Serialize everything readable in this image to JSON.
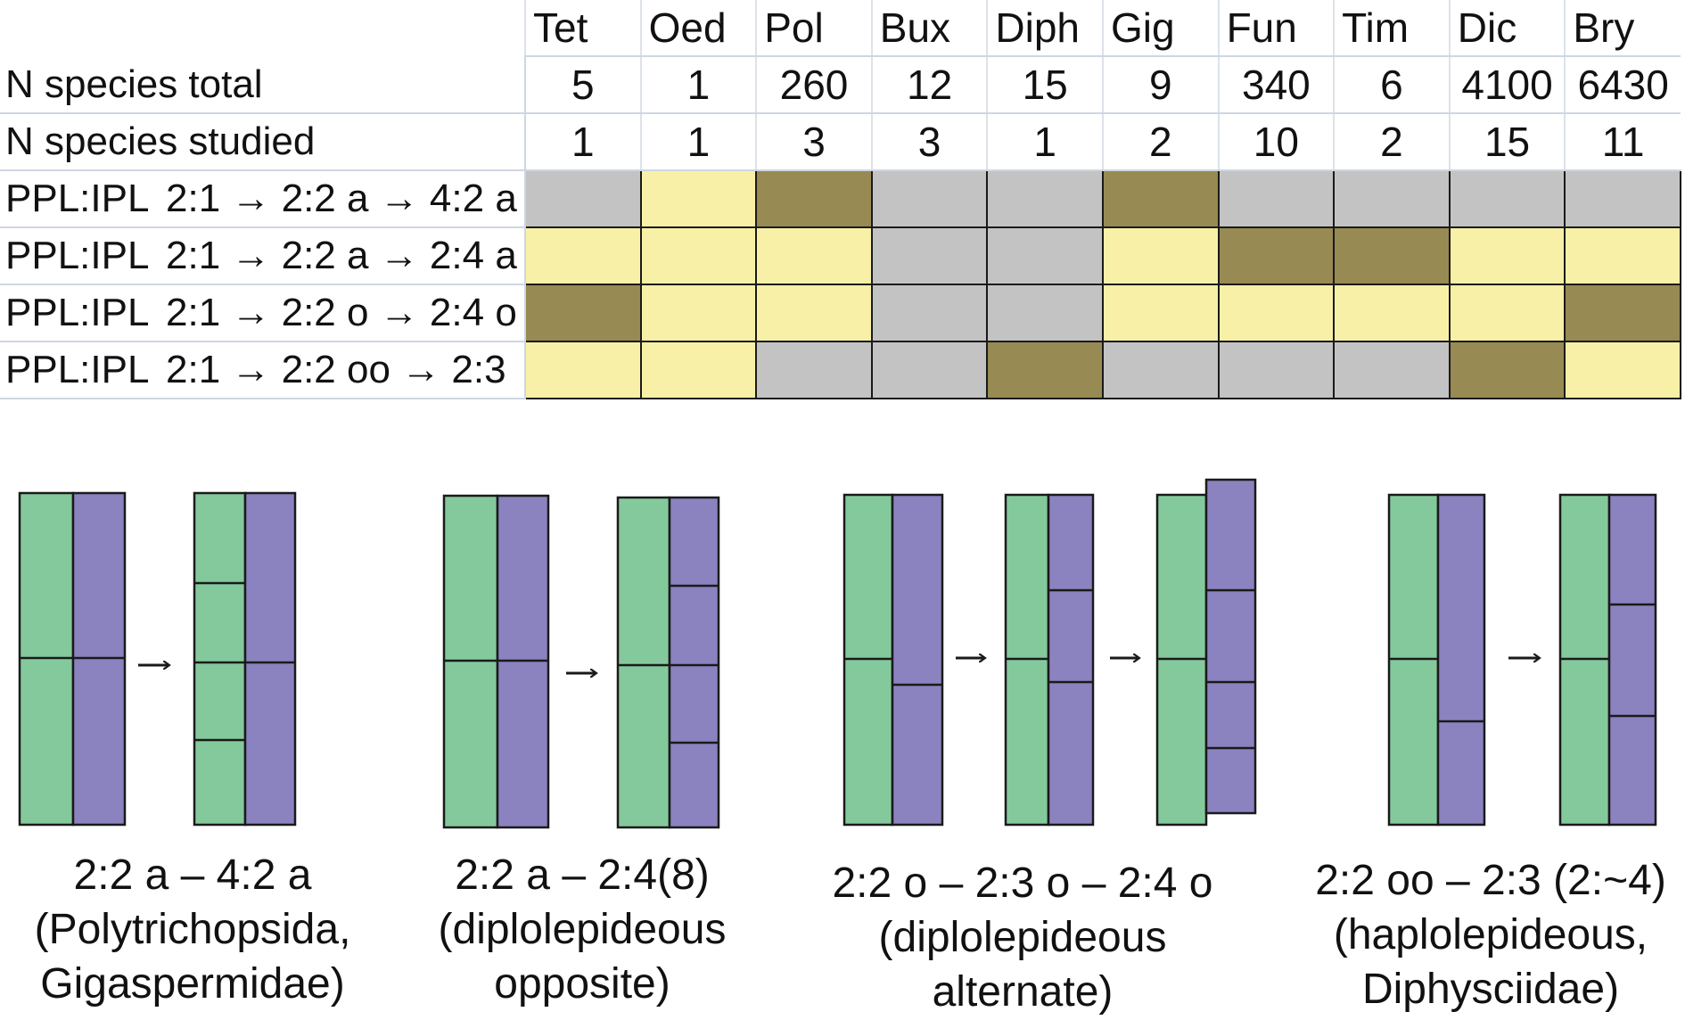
{
  "table": {
    "columns": [
      "Tet",
      "Oed",
      "Pol",
      "Bux",
      "Diph",
      "Gig",
      "Fun",
      "Tim",
      "Dic",
      "Bry"
    ],
    "count_rows": [
      {
        "label": "N species total",
        "values": [
          "5",
          "1",
          "260",
          "12",
          "15",
          "9",
          "340",
          "6",
          "4100",
          "6430"
        ]
      },
      {
        "label": "N species studied",
        "values": [
          "1",
          "1",
          "3",
          "3",
          "1",
          "2",
          "10",
          "2",
          "15",
          "11"
        ]
      }
    ],
    "pattern_rows": [
      {
        "prefix": "PPL:IPL",
        "sequence": "2:1 → 2:2 a → 4:2 a",
        "cells": [
          "absent",
          "possible",
          "present",
          "absent",
          "absent",
          "present",
          "absent",
          "absent",
          "absent",
          "absent"
        ]
      },
      {
        "prefix": "PPL:IPL",
        "sequence": "2:1 → 2:2 a → 2:4 a",
        "cells": [
          "possible",
          "possible",
          "possible",
          "absent",
          "absent",
          "possible",
          "present",
          "present",
          "possible",
          "possible"
        ]
      },
      {
        "prefix": "PPL:IPL",
        "sequence": "2:1 → 2:2 o → 2:4 o",
        "cells": [
          "present",
          "possible",
          "possible",
          "absent",
          "absent",
          "possible",
          "possible",
          "possible",
          "possible",
          "present"
        ]
      },
      {
        "prefix": "PPL:IPL",
        "sequence": "2:1 → 2:2 oo → 2:3",
        "cells": [
          "possible",
          "possible",
          "absent",
          "absent",
          "present",
          "absent",
          "absent",
          "absent",
          "present",
          "possible"
        ]
      }
    ],
    "cell_colors": {
      "absent": "#c3c3c3",
      "possible": "#f8f0a6",
      "present": "#978a52"
    },
    "grid_color": "#1a1a1a"
  },
  "diagram_colors": {
    "green": "#84c99c",
    "purple": "#8b82c0",
    "stroke": "#1a1a1a",
    "arrow": "#1a1a1a"
  },
  "groups": [
    {
      "caption": [
        "2:2 a  – 4:2 a",
        "(Polytrichopsida,",
        "Gigaspermidae)"
      ]
    },
    {
      "caption": [
        "2:2 a – 2:4(8)",
        "(diplolepideous",
        "opposite)"
      ]
    },
    {
      "caption": [
        "2:2 o – 2:3 o – 2:4 o",
        "(diplolepideous",
        "alternate)"
      ]
    },
    {
      "caption": [
        "2:2 oo – 2:3 (2:~4)",
        "(haplolepideous,",
        "Diphysciidae)"
      ]
    }
  ]
}
